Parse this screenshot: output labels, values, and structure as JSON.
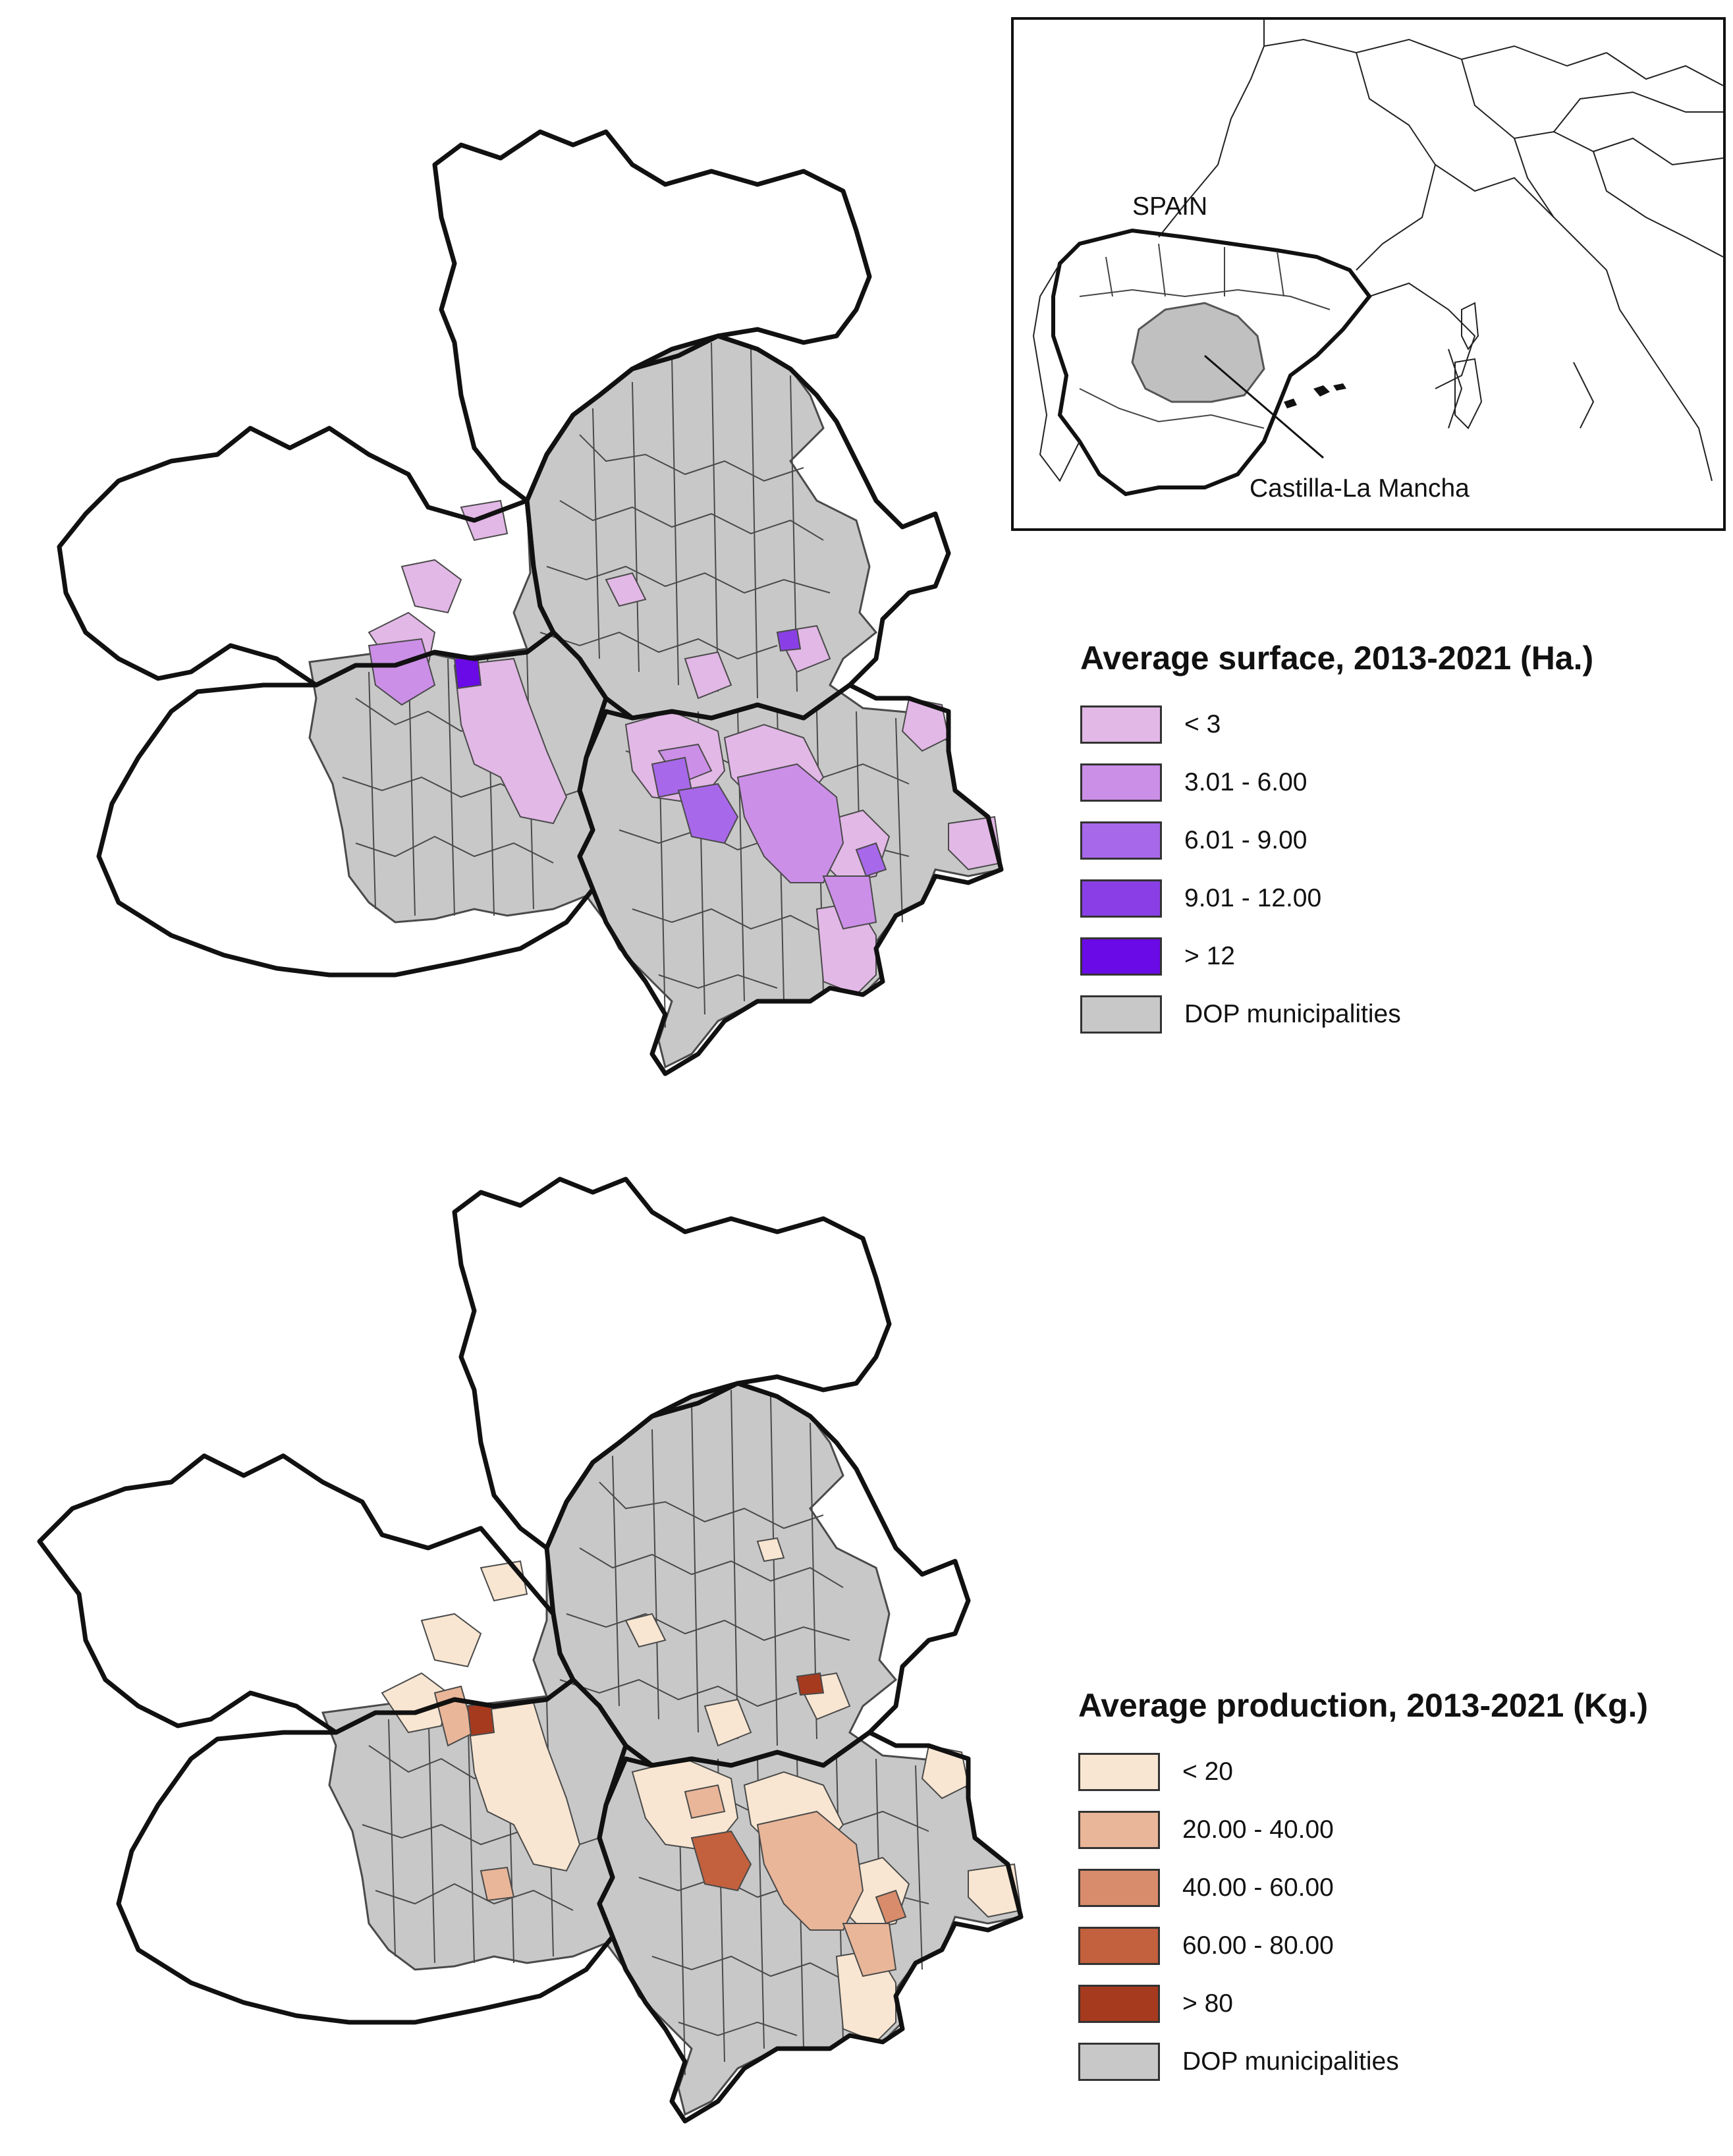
{
  "inset": {
    "country_label": "SPAIN",
    "region_label": "Castilla-La Mancha"
  },
  "maps": [
    {
      "id": "surface",
      "legend_title": "Average surface, 2013-2021 (Ha.)",
      "classes": [
        {
          "label": "< 3",
          "color": "#e2b8e6"
        },
        {
          "label": "3.01 - 6.00",
          "color": "#cc8fe8"
        },
        {
          "label": "6.01 - 9.00",
          "color": "#a868ea"
        },
        {
          "label": "9.01 - 12.00",
          "color": "#8a3fe6"
        },
        {
          "label": "> 12",
          "color": "#6a0ae6"
        },
        {
          "label": "DOP municipalities",
          "color": "#c8c8c8"
        }
      ]
    },
    {
      "id": "production",
      "legend_title": "Average production, 2013-2021 (Kg.)",
      "classes": [
        {
          "label": "< 20",
          "color": "#f8e6d2"
        },
        {
          "label": "20.00 - 40.00",
          "color": "#e9b699"
        },
        {
          "label": "40.00 - 60.00",
          "color": "#d98c6b"
        },
        {
          "label": "60.00 - 80.00",
          "color": "#c3603e"
        },
        {
          "label": "> 80",
          "color": "#a63a1f"
        },
        {
          "label": "DOP municipalities",
          "color": "#c8c8c8"
        }
      ]
    }
  ],
  "colors": {
    "boundary": "#111111",
    "municipality_edge": "#4a4a4a",
    "dop_fill": "#c8c8c8",
    "region_fill": "#c0c0c0"
  }
}
